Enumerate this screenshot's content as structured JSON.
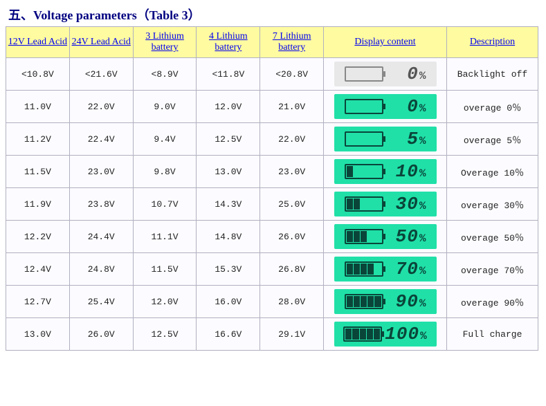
{
  "title": "五、Voltage parameters（Table 3）",
  "columns": [
    "12V Lead Acid",
    "24V Lead Acid",
    "3 Lithium battery",
    "4 Lithium battery",
    "7 Lithium battery",
    "Display content",
    "Description"
  ],
  "rows": [
    {
      "v": [
        "<10.8V",
        "<21.6V",
        "<8.9V",
        "<11.8V",
        "<20.8V"
      ],
      "pct": "0",
      "bars": 0,
      "backlight": false,
      "desc": "Backlight off"
    },
    {
      "v": [
        "11.0V",
        "22.0V",
        "9.0V",
        "12.0V",
        "21.0V"
      ],
      "pct": "0",
      "bars": 0,
      "backlight": true,
      "desc": "overage 0％"
    },
    {
      "v": [
        "11.2V",
        "22.4V",
        "9.4V",
        "12.5V",
        "22.0V"
      ],
      "pct": "5",
      "bars": 0,
      "backlight": true,
      "desc": "overage 5％"
    },
    {
      "v": [
        "11.5V",
        "23.0V",
        "9.8V",
        "13.0V",
        "23.0V"
      ],
      "pct": "10",
      "bars": 1,
      "backlight": true,
      "desc": "Overage 10％"
    },
    {
      "v": [
        "11.9V",
        "23.8V",
        "10.7V",
        "14.3V",
        "25.0V"
      ],
      "pct": "30",
      "bars": 2,
      "backlight": true,
      "desc": "overage 30％"
    },
    {
      "v": [
        "12.2V",
        "24.4V",
        "11.1V",
        "14.8V",
        "26.0V"
      ],
      "pct": "50",
      "bars": 3,
      "backlight": true,
      "desc": "overage 50％"
    },
    {
      "v": [
        "12.4V",
        "24.8V",
        "11.5V",
        "15.3V",
        "26.8V"
      ],
      "pct": "70",
      "bars": 4,
      "backlight": true,
      "desc": "overage 70％"
    },
    {
      "v": [
        "12.7V",
        "25.4V",
        "12.0V",
        "16.0V",
        "28.0V"
      ],
      "pct": "90",
      "bars": 5,
      "backlight": true,
      "desc": "overage 90％"
    },
    {
      "v": [
        "13.0V",
        "26.0V",
        "12.5V",
        "16.6V",
        "29.1V"
      ],
      "pct": "100",
      "bars": 5,
      "backlight": true,
      "desc": "Full charge"
    }
  ],
  "style": {
    "header_bg": "#fffba0",
    "header_fg": "#0000ee",
    "cell_bg": "#fcfbff",
    "border": "#b0b0c0",
    "lcd_on_bg": "#20e0a8",
    "lcd_off_bg": "#e8e8e8",
    "lcd_fg": "#0a453a",
    "desc_fg": "#0000cc",
    "title_fg": "#000080",
    "font_mono": "Courier New",
    "th_underline": true,
    "max_bars": 5
  }
}
